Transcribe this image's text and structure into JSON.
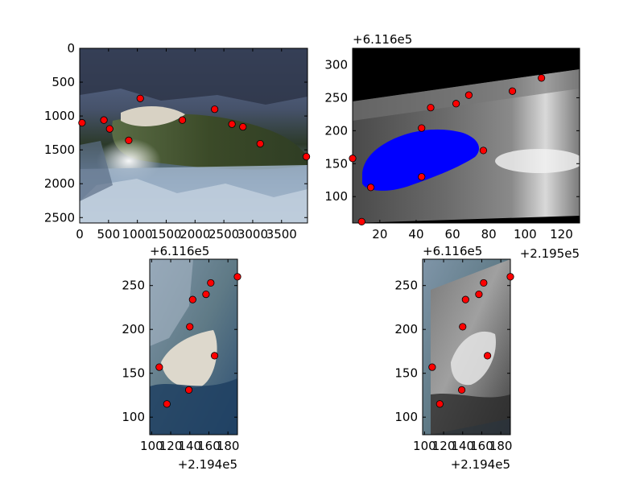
{
  "chart_data": [
    {
      "type": "scatter",
      "xlim": [
        0,
        3950
      ],
      "ylim": [
        2580,
        0
      ],
      "xticks": [
        0,
        500,
        1000,
        1500,
        2000,
        2500,
        3000,
        3500
      ],
      "xtick_labels": [
        "0",
        "500",
        "1000",
        "1500",
        "2000",
        "2500",
        "3000",
        "3500"
      ],
      "yticks": [
        0,
        500,
        1000,
        1500,
        2000,
        2500
      ],
      "ytick_labels": [
        "0",
        "500",
        "1000",
        "1500",
        "2000",
        "2500"
      ],
      "background": "photo",
      "points": [
        {
          "x": 40,
          "y": 1100
        },
        {
          "x": 420,
          "y": 1060
        },
        {
          "x": 520,
          "y": 1190
        },
        {
          "x": 850,
          "y": 1360
        },
        {
          "x": 1050,
          "y": 740
        },
        {
          "x": 1780,
          "y": 1060
        },
        {
          "x": 2340,
          "y": 900
        },
        {
          "x": 2640,
          "y": 1120
        },
        {
          "x": 2830,
          "y": 1160
        },
        {
          "x": 3130,
          "y": 1410
        },
        {
          "x": 3930,
          "y": 1600
        }
      ]
    },
    {
      "type": "scatter",
      "xlim": [
        5,
        130
      ],
      "ylim": [
        60,
        325
      ],
      "xticks": [
        20,
        40,
        60,
        80,
        100,
        120
      ],
      "xtick_labels": [
        "20",
        "40",
        "60",
        "80",
        "100",
        "120"
      ],
      "yticks": [
        100,
        150,
        200,
        250,
        300
      ],
      "ytick_labels": [
        "100",
        "150",
        "200",
        "250",
        "300"
      ],
      "x_offset": "+2.195e5",
      "y_offset": "+6.116e5",
      "background": "grayscale raster with blue water mask",
      "points": [
        {
          "x": 5,
          "y": 158
        },
        {
          "x": 10,
          "y": 62
        },
        {
          "x": 15,
          "y": 114
        },
        {
          "x": 43,
          "y": 130
        },
        {
          "x": 43,
          "y": 204
        },
        {
          "x": 48,
          "y": 235
        },
        {
          "x": 62,
          "y": 241
        },
        {
          "x": 69,
          "y": 254
        },
        {
          "x": 77,
          "y": 170
        },
        {
          "x": 93,
          "y": 260
        },
        {
          "x": 109,
          "y": 280
        }
      ]
    },
    {
      "type": "scatter",
      "xlim": [
        98,
        190
      ],
      "ylim": [
        80,
        280
      ],
      "xticks": [
        100,
        120,
        140,
        160,
        180
      ],
      "xtick_labels": [
        "100",
        "120",
        "140",
        "160",
        "180"
      ],
      "yticks": [
        100,
        150,
        200,
        250
      ],
      "ytick_labels": [
        "100",
        "150",
        "200",
        "250"
      ],
      "x_offset": "+2.194e5",
      "y_offset": "+6.116e5",
      "background": "aerial photo",
      "points": [
        {
          "x": 108,
          "y": 157
        },
        {
          "x": 116,
          "y": 115
        },
        {
          "x": 139,
          "y": 131
        },
        {
          "x": 140,
          "y": 203
        },
        {
          "x": 143,
          "y": 234
        },
        {
          "x": 157,
          "y": 240
        },
        {
          "x": 162,
          "y": 253
        },
        {
          "x": 166,
          "y": 170
        },
        {
          "x": 190,
          "y": 260
        }
      ]
    },
    {
      "type": "scatter",
      "xlim": [
        98,
        190
      ],
      "ylim": [
        80,
        280
      ],
      "xticks": [
        100,
        120,
        140,
        160,
        180
      ],
      "xtick_labels": [
        "100",
        "120",
        "140",
        "160",
        "180"
      ],
      "yticks": [
        100,
        150,
        200,
        250
      ],
      "ytick_labels": [
        "100",
        "150",
        "200",
        "250"
      ],
      "x_offset": "+2.194e5",
      "y_offset": "+6.116e5",
      "background": "grayscale orthoimage over aerial photo",
      "points": [
        {
          "x": 108,
          "y": 157
        },
        {
          "x": 116,
          "y": 115
        },
        {
          "x": 139,
          "y": 131
        },
        {
          "x": 140,
          "y": 203
        },
        {
          "x": 143,
          "y": 234
        },
        {
          "x": 157,
          "y": 240
        },
        {
          "x": 162,
          "y": 253
        },
        {
          "x": 166,
          "y": 170
        },
        {
          "x": 190,
          "y": 260
        }
      ]
    }
  ],
  "colors": {
    "marker_fill": "#ff0000",
    "marker_edge": "#000000",
    "water_mask": "#0000ff",
    "nodata": "#000000"
  }
}
